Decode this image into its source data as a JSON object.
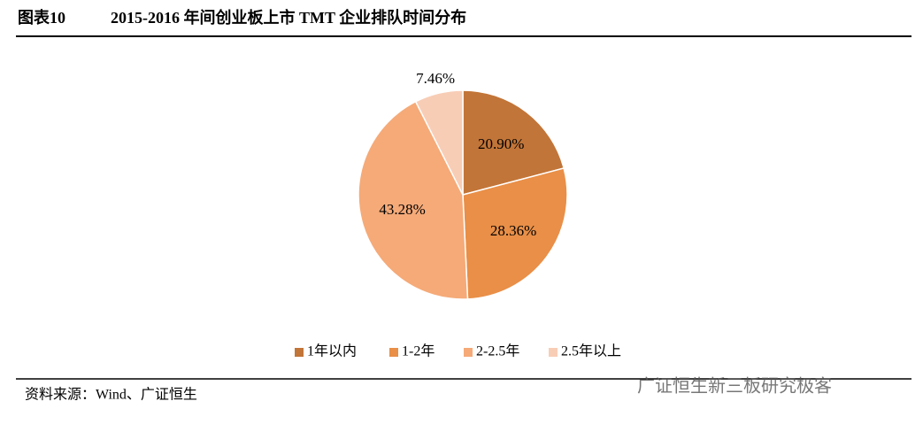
{
  "chart_data": {
    "type": "pie",
    "figure_label": "图表10",
    "title": "2015-2016 年间创业板上市 TMT 企业排队时间分布",
    "categories": [
      "1年以内",
      "1-2年",
      "2-2.5年",
      "2.5年以上"
    ],
    "values": [
      20.9,
      28.36,
      43.28,
      7.46
    ],
    "value_labels": [
      "20.90%",
      "28.36%",
      "43.28%",
      "7.46%"
    ],
    "colors": [
      "#c27538",
      "#e98f47",
      "#f5aa78",
      "#f8cdb6"
    ],
    "source": "资料来源：Wind、广证恒生",
    "watermark": "广证恒生新三板研究极客"
  }
}
